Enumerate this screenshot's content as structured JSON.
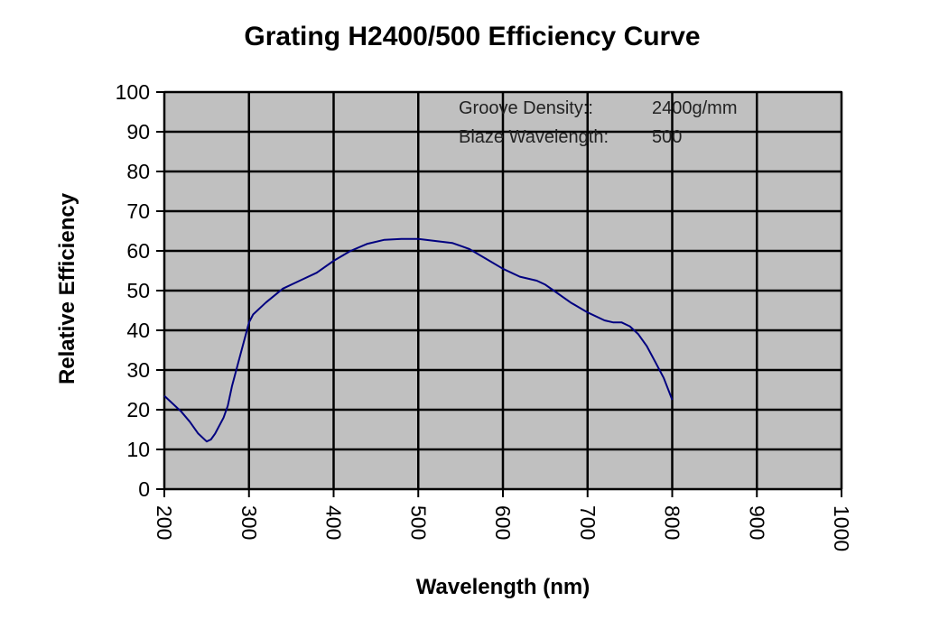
{
  "chart_data": {
    "type": "line",
    "title": "Grating H2400/500 Efficiency Curve",
    "xlabel": "Wavelength (nm)",
    "ylabel": "Relative Efficiency",
    "xlim": [
      200,
      1000
    ],
    "ylim": [
      0,
      100
    ],
    "x_ticks": [
      200,
      300,
      400,
      500,
      600,
      700,
      800,
      900,
      1000
    ],
    "y_ticks": [
      0,
      10,
      20,
      30,
      40,
      50,
      60,
      70,
      80,
      90,
      100
    ],
    "grid": true,
    "plot_background": "#c0c0c0",
    "line_color": "#000080",
    "annotations": [
      {
        "label": "Groove Density::",
        "value": "2400g/mm"
      },
      {
        "label": "Blaze Wavelength:",
        "value": "500"
      }
    ],
    "series": [
      {
        "x": [
          200,
          210,
          220,
          230,
          240,
          250,
          255,
          260,
          270,
          275,
          280,
          290,
          300,
          305,
          320,
          340,
          360,
          380,
          400,
          420,
          440,
          460,
          480,
          500,
          520,
          540,
          560,
          580,
          600,
          620,
          640,
          650,
          660,
          680,
          700,
          720,
          730,
          740,
          745,
          750,
          760,
          770,
          780,
          790,
          800
        ],
        "y": [
          23.5,
          21.5,
          19.5,
          17,
          14,
          12,
          12.5,
          14,
          18,
          21,
          26,
          34,
          42,
          44,
          47,
          50.5,
          52.5,
          54.5,
          57.5,
          60,
          61.8,
          62.8,
          63,
          63,
          62.5,
          62,
          60.5,
          58,
          55.5,
          53.5,
          52.5,
          51.5,
          50,
          47,
          44.5,
          42.5,
          42,
          42,
          41.5,
          41,
          39,
          36,
          32,
          28,
          22.5
        ]
      }
    ]
  }
}
